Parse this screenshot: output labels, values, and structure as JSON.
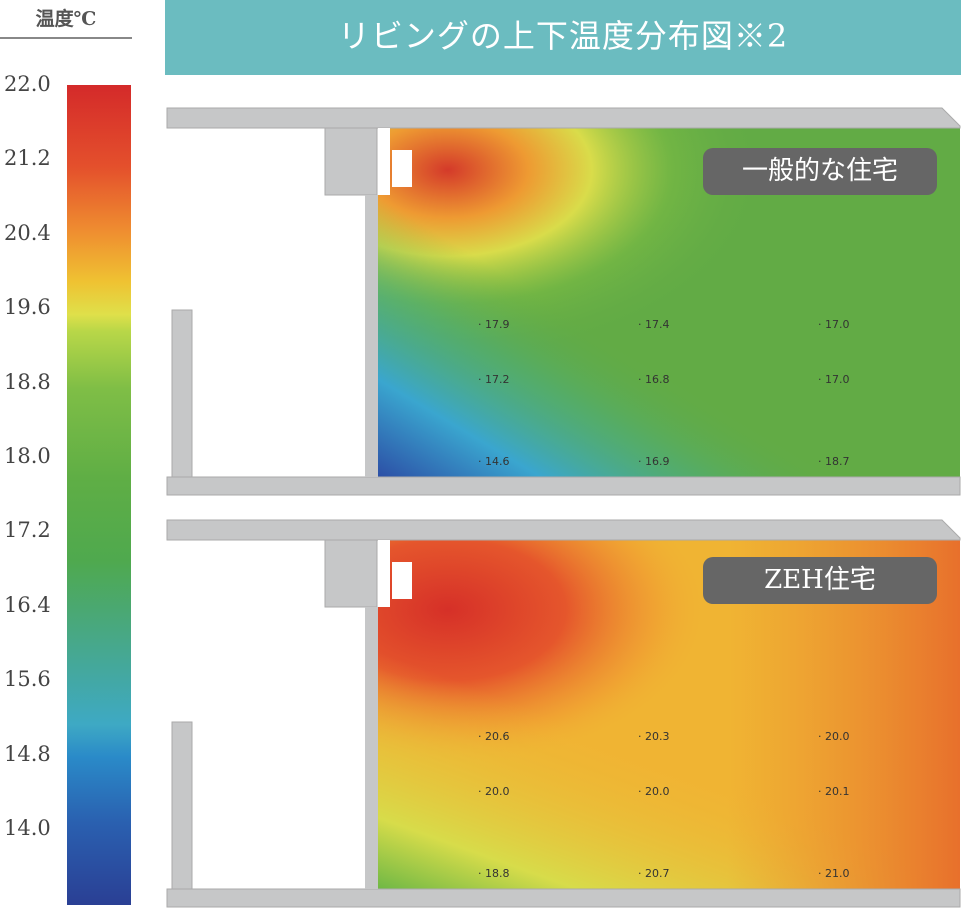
{
  "legend": {
    "title": "温度℃",
    "ticks": [
      "22.0",
      "21.2",
      "20.4",
      "19.6",
      "18.8",
      "18.0",
      "17.2",
      "16.4",
      "15.6",
      "14.8",
      "14.0"
    ],
    "range": [
      13.2,
      22.0
    ]
  },
  "title": "リビングの上下温度分布図※2",
  "panels": [
    {
      "label": "一般的な住宅",
      "readings": [
        "17.9",
        "17.4",
        "17.0",
        "17.2",
        "16.8",
        "17.0",
        "14.6",
        "16.9",
        "18.7"
      ]
    },
    {
      "label": "ZEH住宅",
      "readings": [
        "20.6",
        "20.3",
        "20.0",
        "20.0",
        "20.0",
        "20.1",
        "18.8",
        "20.7",
        "21.0"
      ]
    }
  ],
  "colors": {
    "banner": "#6bbcc0",
    "tag": "#666666",
    "structure": "#c6c7c8"
  }
}
